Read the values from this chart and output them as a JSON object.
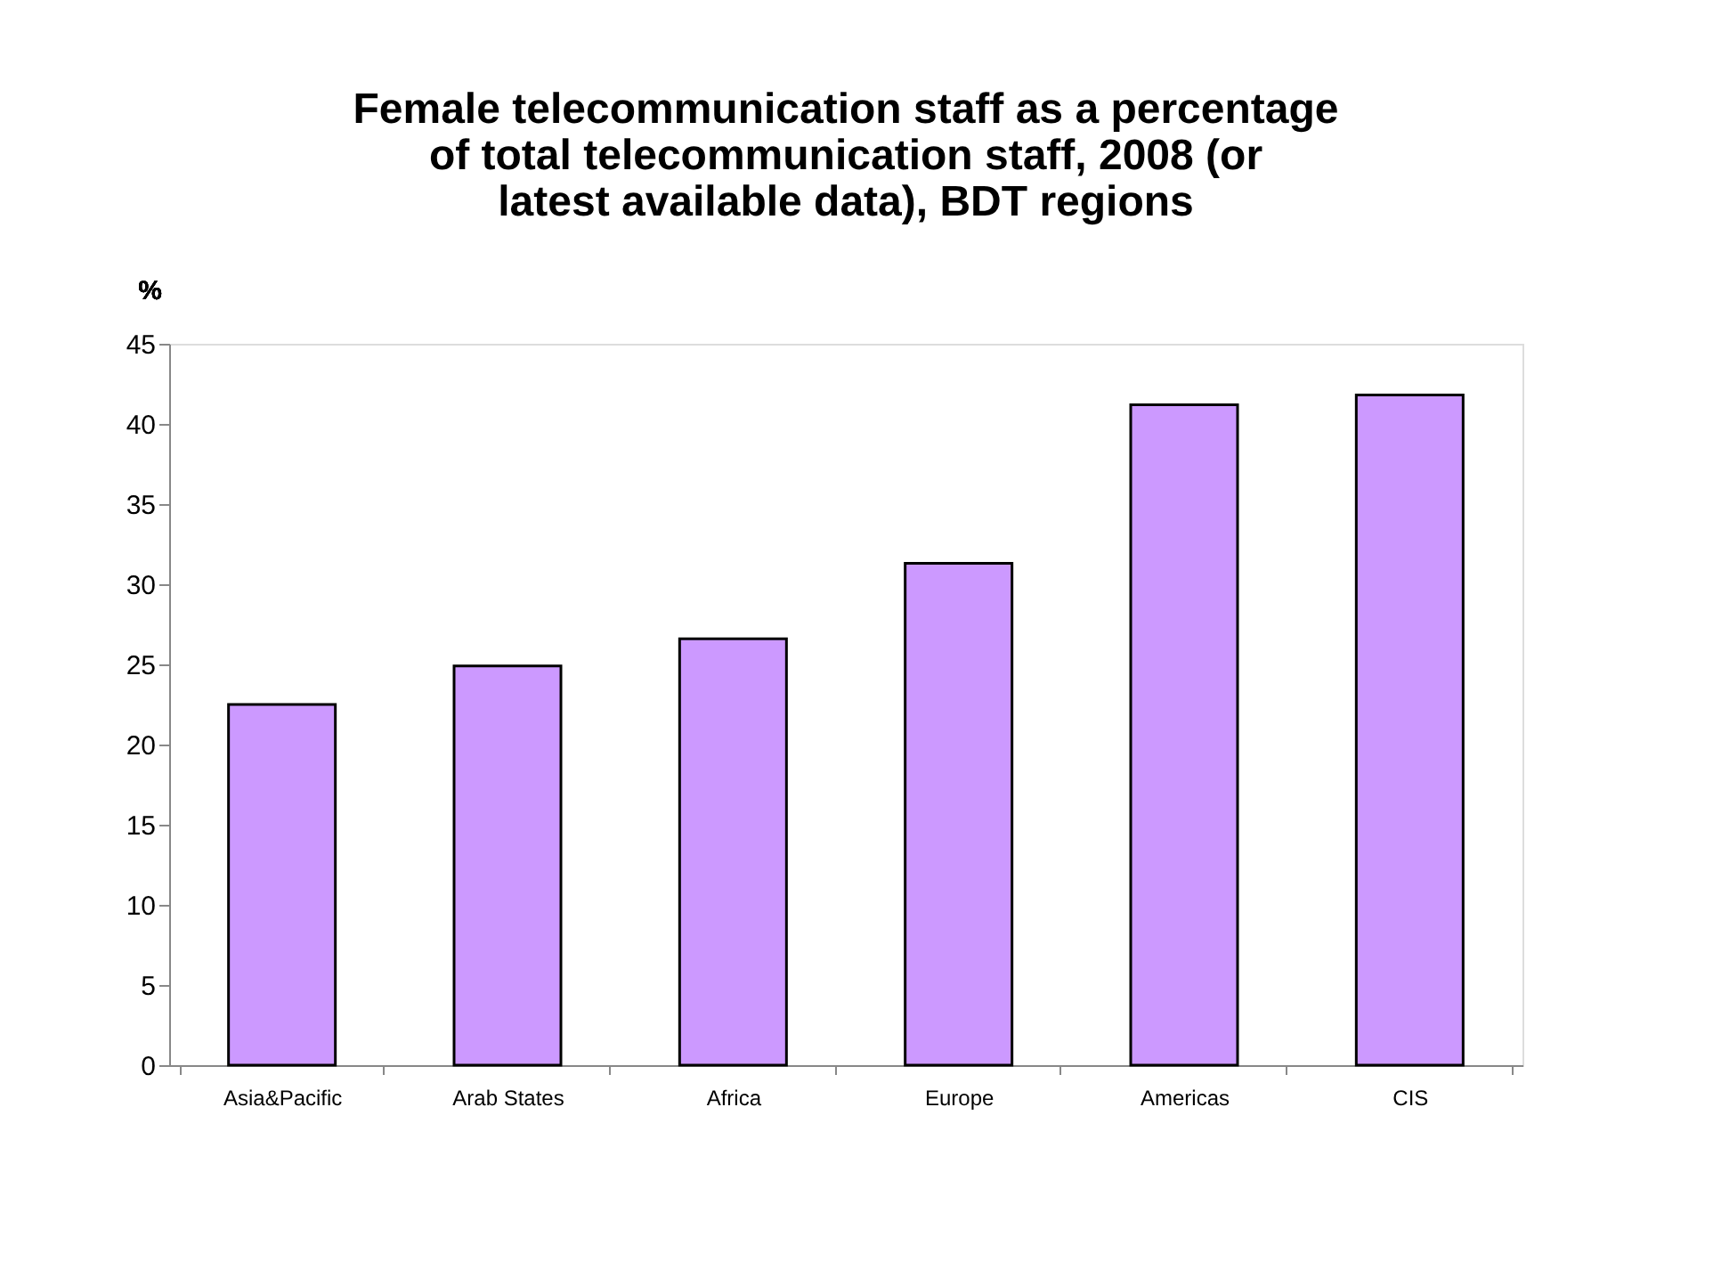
{
  "chart_data": {
    "type": "bar",
    "title": "Female telecommunication staff as a percentage of total telecommunication staff, 2008 (or latest available data), BDT regions",
    "ylabel": "%",
    "categories": [
      "Asia&Pacific",
      "Arab States",
      "Africa",
      "Europe",
      "Americas",
      "CIS"
    ],
    "values": [
      22.5,
      24.9,
      26.6,
      31.3,
      41.2,
      41.8
    ],
    "color": "#cc99ff",
    "ylim": [
      0,
      45
    ],
    "yticks": [
      0,
      5,
      10,
      15,
      20,
      25,
      30,
      35,
      40,
      45
    ],
    "grid": false
  }
}
